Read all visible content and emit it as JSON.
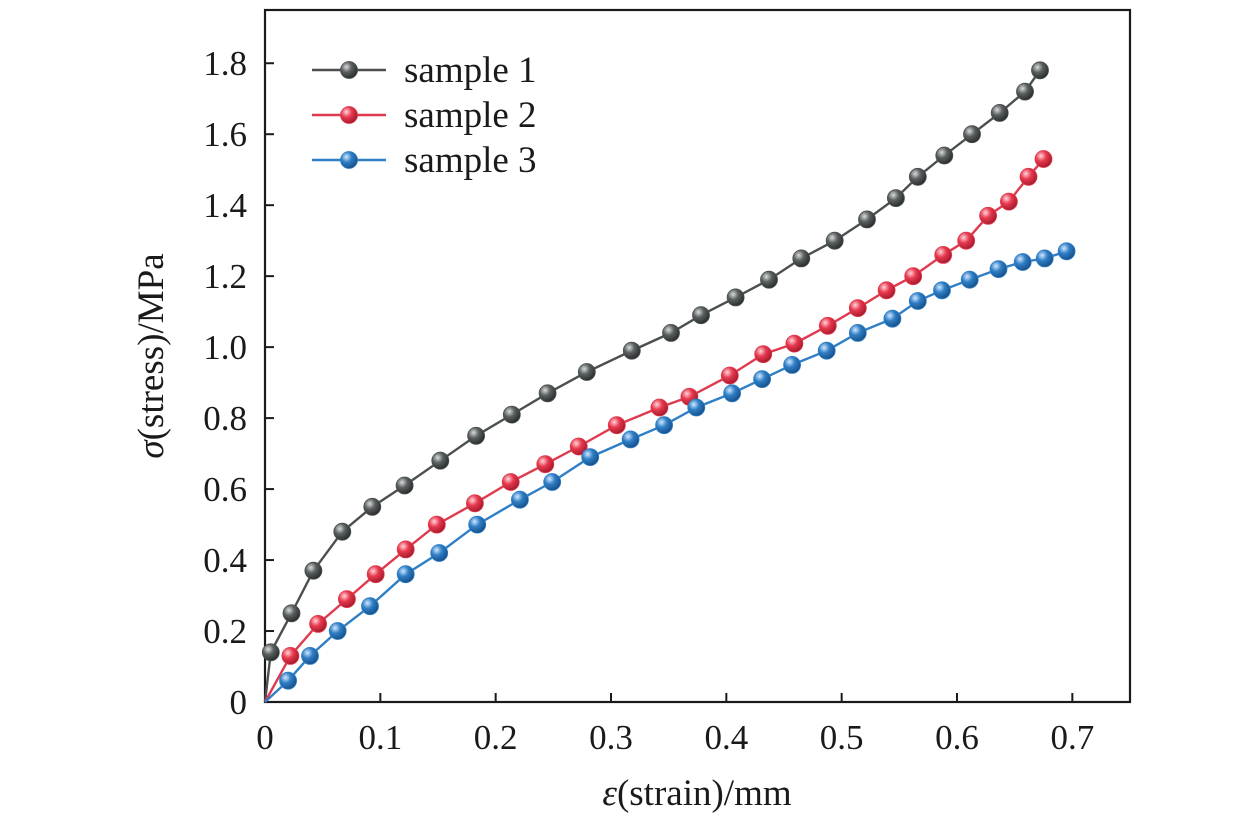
{
  "chart_data": {
    "type": "line",
    "xlabel_symbol": "ε",
    "xlabel_rest": "(strain)/mm",
    "ylabel_symbol": "σ",
    "ylabel_rest": "(stress)/MPa",
    "xlim": [
      0,
      0.75
    ],
    "ylim": [
      0,
      1.95
    ],
    "xticks": [
      0,
      0.1,
      0.2,
      0.3,
      0.4,
      0.5,
      0.6,
      0.7
    ],
    "xtick_labels": [
      "0",
      "0.1",
      "0.2",
      "0.3",
      "0.4",
      "0.5",
      "0.6",
      "0.7"
    ],
    "yticks": [
      0,
      0.2,
      0.4,
      0.6,
      0.8,
      1.0,
      1.2,
      1.4,
      1.6,
      1.8
    ],
    "ytick_labels": [
      "0",
      "0.2",
      "0.4",
      "0.6",
      "0.8",
      "1.0",
      "1.2",
      "1.4",
      "1.6",
      "1.8"
    ],
    "grid": false,
    "legend_position": "top-left",
    "series": [
      {
        "name": "sample 1",
        "color": "#4b4f4f",
        "x": [
          0.005,
          0.023,
          0.042,
          0.067,
          0.093,
          0.121,
          0.152,
          0.183,
          0.214,
          0.245,
          0.279,
          0.318,
          0.352,
          0.378,
          0.408,
          0.437,
          0.465,
          0.494,
          0.522,
          0.547,
          0.566,
          0.589,
          0.613,
          0.637,
          0.659,
          0.672
        ],
        "y": [
          0.14,
          0.25,
          0.37,
          0.48,
          0.55,
          0.61,
          0.68,
          0.75,
          0.81,
          0.87,
          0.93,
          0.99,
          1.04,
          1.09,
          1.14,
          1.19,
          1.25,
          1.3,
          1.36,
          1.42,
          1.48,
          1.54,
          1.6,
          1.66,
          1.72,
          1.78
        ]
      },
      {
        "name": "sample 2",
        "color": "#e03a4e",
        "x": [
          0.022,
          0.046,
          0.071,
          0.096,
          0.122,
          0.149,
          0.182,
          0.213,
          0.243,
          0.272,
          0.305,
          0.342,
          0.368,
          0.403,
          0.432,
          0.459,
          0.488,
          0.514,
          0.539,
          0.562,
          0.588,
          0.608,
          0.627,
          0.645,
          0.662,
          0.675
        ],
        "y": [
          0.13,
          0.22,
          0.29,
          0.36,
          0.43,
          0.5,
          0.56,
          0.62,
          0.67,
          0.72,
          0.78,
          0.83,
          0.86,
          0.92,
          0.98,
          1.01,
          1.06,
          1.11,
          1.16,
          1.2,
          1.26,
          1.3,
          1.37,
          1.41,
          1.48,
          1.53
        ]
      },
      {
        "name": "sample 3",
        "color": "#2f7fc6",
        "x": [
          0.02,
          0.039,
          0.063,
          0.091,
          0.122,
          0.151,
          0.184,
          0.221,
          0.249,
          0.282,
          0.317,
          0.346,
          0.374,
          0.405,
          0.431,
          0.457,
          0.487,
          0.514,
          0.544,
          0.566,
          0.587,
          0.611,
          0.636,
          0.657,
          0.676,
          0.695
        ],
        "y": [
          0.06,
          0.13,
          0.2,
          0.27,
          0.36,
          0.42,
          0.5,
          0.57,
          0.62,
          0.69,
          0.74,
          0.78,
          0.83,
          0.87,
          0.91,
          0.95,
          0.99,
          1.04,
          1.08,
          1.13,
          1.16,
          1.19,
          1.22,
          1.24,
          1.25,
          1.27
        ]
      }
    ]
  }
}
